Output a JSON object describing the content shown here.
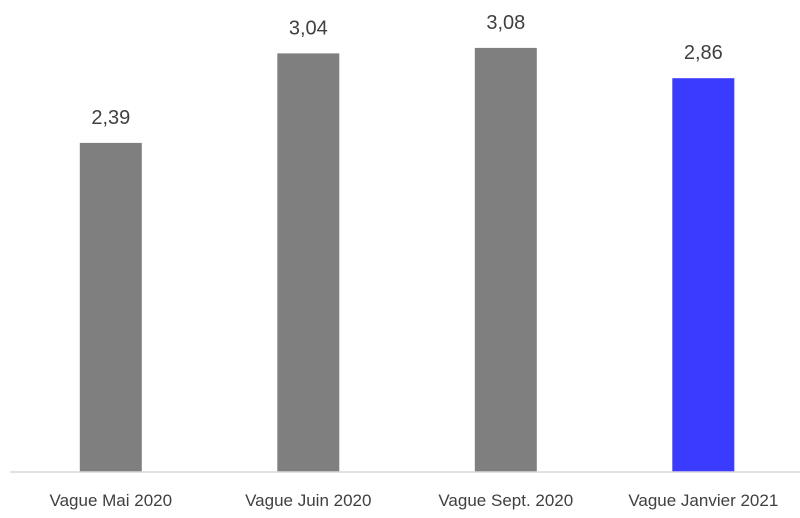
{
  "chart_data": {
    "type": "bar",
    "title": "",
    "xlabel": "",
    "ylabel": "",
    "categories": [
      "Vague Mai 2020",
      "Vague Juin 2020",
      "Vague Sept. 2020",
      "Vague Janvier 2021"
    ],
    "values": [
      2.39,
      3.04,
      3.08,
      2.86
    ],
    "value_labels": [
      "2,39",
      "3,04",
      "3,08",
      "2,86"
    ],
    "bar_colors": [
      "#7f7f7f",
      "#7f7f7f",
      "#7f7f7f",
      "#3b3bff"
    ],
    "axis_color": "#d9d9d9",
    "ylim": [
      0,
      3.5
    ],
    "grid": false,
    "legend": "none"
  }
}
